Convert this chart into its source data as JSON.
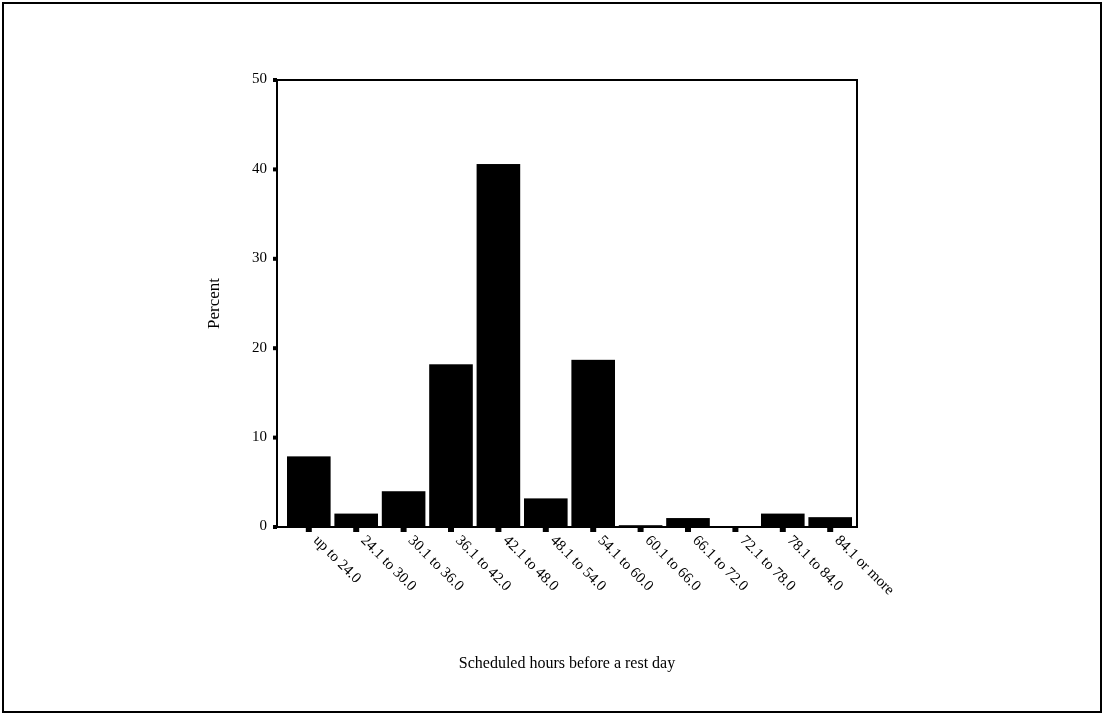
{
  "chart_data": {
    "type": "bar",
    "xlabel": "Scheduled hours before a rest day",
    "ylabel": "Percent",
    "categories": [
      "up to 24.0",
      "24.1 to 30.0",
      "30.1 to 36.0",
      "36.1 to 42.0",
      "42.1 to 48.0",
      "48.1 to 54.0",
      "54.1 to 60.0",
      "60.1 to 66.0",
      "66.1 to 72.0",
      "72.1 to 78.0",
      "78.1 to 84.0",
      "84.1 or more"
    ],
    "values": [
      7.9,
      1.5,
      4.0,
      18.2,
      40.6,
      3.2,
      18.7,
      0.2,
      1.0,
      0,
      1.5,
      1.1
    ],
    "color": "#000000",
    "ylim": [
      0,
      50
    ],
    "yticks": [
      0,
      10,
      20,
      30,
      40,
      50
    ],
    "grid": false
  }
}
